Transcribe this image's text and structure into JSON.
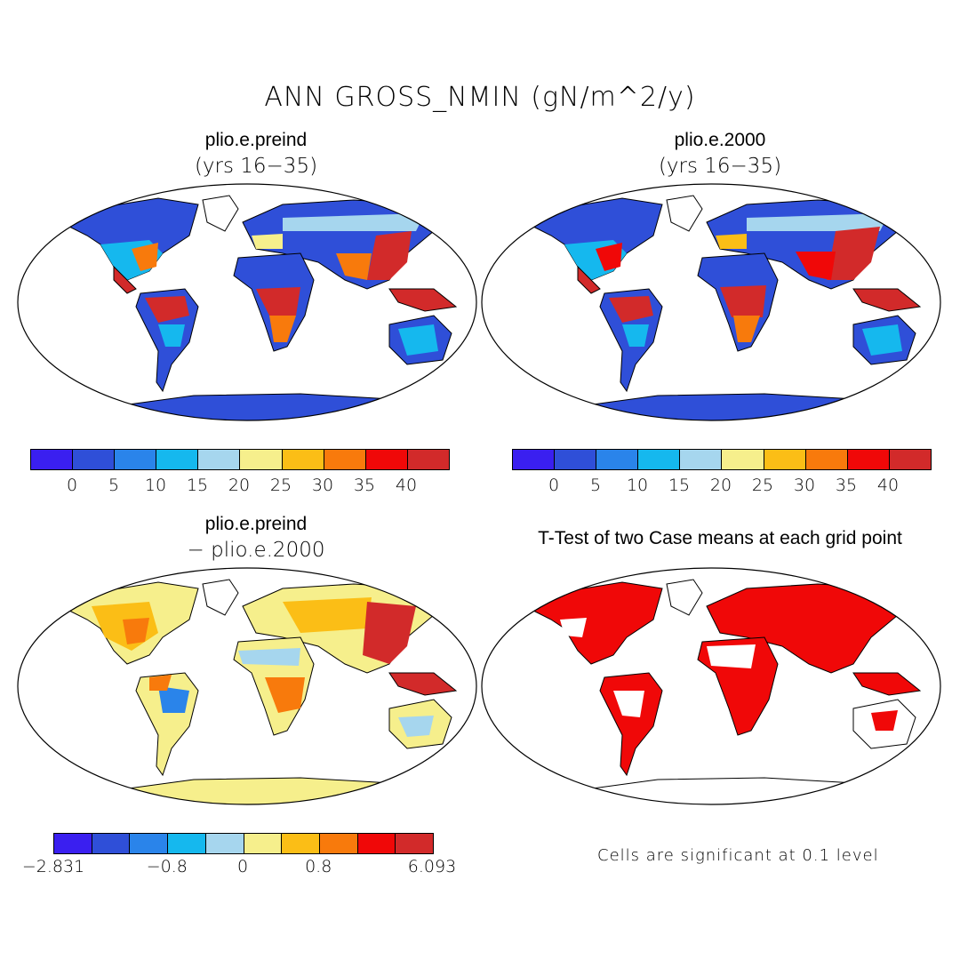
{
  "figure": {
    "title": "ANN GROSS_NMIN (gN/m^2/y)"
  },
  "panels": [
    {
      "title": "plio.e.preind",
      "subtitle": "(yrs 16−35)"
    },
    {
      "title": "plio.e.2000",
      "subtitle": "(yrs 16−35)"
    },
    {
      "title": "plio.e.preind",
      "subtitle": "− plio.e.2000"
    },
    {
      "title": "T-Test of two Case means at each grid point",
      "subtitle": ""
    }
  ],
  "colorbar_abs": {
    "colors": [
      "#3a1ff0",
      "#2f4fd8",
      "#2a84ea",
      "#15b8ee",
      "#a6d6ee",
      "#f6ef8c",
      "#fbbe16",
      "#f87a0c",
      "#f00808",
      "#d22a2a"
    ],
    "labels": [
      "0",
      "5",
      "10",
      "15",
      "20",
      "25",
      "30",
      "35",
      "40"
    ]
  },
  "colorbar_diff": {
    "colors": [
      "#3a1ff0",
      "#2f4fd8",
      "#2a84ea",
      "#15b8ee",
      "#a6d6ee",
      "#f6ef8c",
      "#fbbe16",
      "#f87a0c",
      "#f00808",
      "#d22a2a"
    ],
    "labels": [
      "−2.831",
      "−0.8",
      "0",
      "0.8",
      "6.093"
    ]
  },
  "significance_note": "Cells are significant at 0.1 level",
  "map_colors": {
    "ocean": "#ffffff",
    "coast": "#000000",
    "land_low": "#2f4fd8",
    "land_mid": "#15b8ee",
    "land_warm": "#fbbe16",
    "land_hot": "#d22a2a",
    "diff_base": "#f6ef8c",
    "signif": "#f00808"
  }
}
